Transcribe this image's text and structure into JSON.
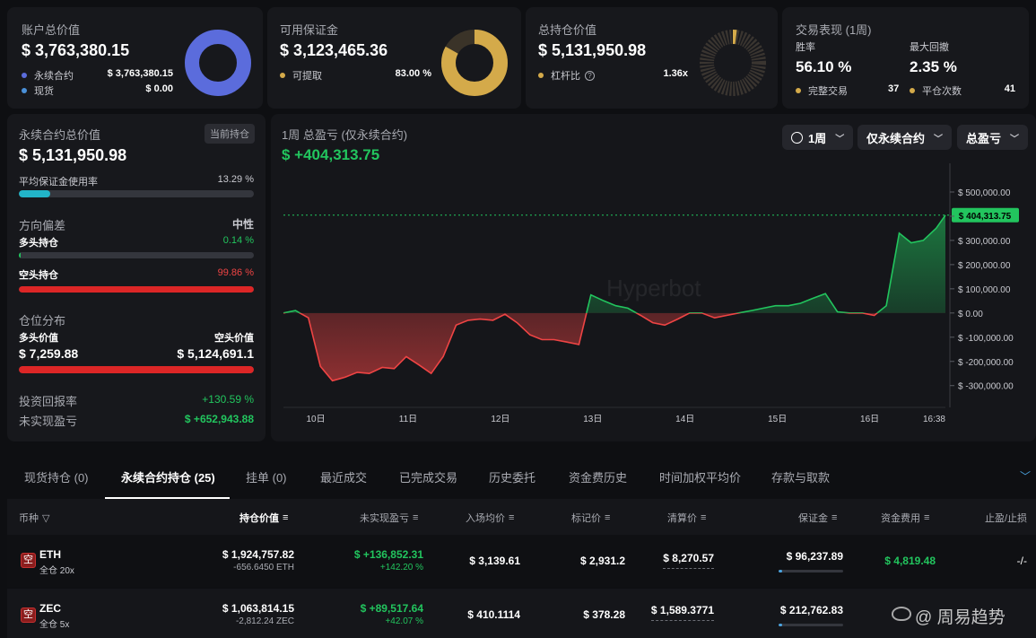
{
  "summary": {
    "account": {
      "title": "账户总价值",
      "value": "$ 3,763,380.15",
      "rows": [
        {
          "label": "永续合约",
          "value": "$ 3,763,380.15"
        },
        {
          "label": "现货",
          "value": "$ 0.00"
        }
      ],
      "color": "#5b6cdc",
      "fill_fraction": 1.0
    },
    "margin": {
      "title": "可用保证金",
      "value": "$ 3,123,465.36",
      "rows": [
        {
          "label": "可提取",
          "value": "83.00 %"
        }
      ],
      "color": "#d4aa4a",
      "fill_fraction": 0.83
    },
    "position": {
      "title": "总持仓价值",
      "value": "$ 5,131,950.98",
      "rows": [
        {
          "label": "杠杆比",
          "value": "1.36x"
        }
      ],
      "color": "#d4aa4a",
      "fill_fraction": 0.02
    },
    "performance": {
      "title": "交易表现 (1周)",
      "win_rate_label": "胜率",
      "win_rate": "56.10 %",
      "drawdown_label": "最大回撤",
      "drawdown": "2.35 %",
      "completed_label": "完整交易",
      "completed": "37",
      "closes_label": "平仓次数",
      "closes": "41"
    }
  },
  "perp": {
    "title": "永续合约总价值",
    "badge": "当前持仓",
    "value": "$ 5,131,950.98",
    "margin_usage_label": "平均保证金使用率",
    "margin_usage": "13.29 %",
    "margin_usage_fraction": 0.1329,
    "bias_label": "方向偏差",
    "bias_value": "中性",
    "long_label": "多头持仓",
    "long_pct": "0.14 %",
    "long_fraction": 0.0014,
    "short_label": "空头持仓",
    "short_pct": "99.86 %",
    "short_fraction": 0.9986,
    "distribution_label": "仓位分布",
    "long_value_label": "多头价值",
    "long_value": "$ 7,259.88",
    "short_value_label": "空头价值",
    "short_value": "$ 5,124,691.1",
    "roi_label": "投资回报率",
    "roi": "+130.59 %",
    "unrealized_label": "未实现盈亏",
    "unrealized": "$ +652,943.88"
  },
  "chart_panel": {
    "title": "1周 总盈亏 (仅永续合约)",
    "value": "$ +404,313.75",
    "period_button": "1周",
    "scope_button": "仅永续合约",
    "metric_button": "总盈亏",
    "watermark": "Hyperbot"
  },
  "chart_data": {
    "type": "area",
    "current_label": "$ 404,313.75",
    "current_value": 404313.75,
    "x_ticks": [
      "10日",
      "11日",
      "12日",
      "13日",
      "14日",
      "15日",
      "16日",
      "16:38"
    ],
    "y_ticks": [
      "$ 500,000.00",
      "$ 400,000.00",
      "$ 300,000.00",
      "$ 200,000.00",
      "$ 100,000.00",
      "$ 0.00",
      "$ -100,000.00",
      "$ -200,000.00",
      "$ -300,000.00"
    ],
    "ylim": [
      -390000,
      600000
    ],
    "x": [
      0,
      0.13,
      0.27,
      0.4,
      0.53,
      0.67,
      0.8,
      0.93,
      1.07,
      1.2,
      1.33,
      1.47,
      1.6,
      1.73,
      1.87,
      2.0,
      2.13,
      2.27,
      2.4,
      2.53,
      2.67,
      2.8,
      2.93,
      3.07,
      3.2,
      3.33,
      3.47,
      3.6,
      3.73,
      3.87,
      4.0,
      4.13,
      4.27,
      4.4,
      4.53,
      4.67,
      4.8,
      4.93,
      5.07,
      5.2,
      5.33,
      5.47,
      5.6,
      5.73,
      5.87,
      6.0,
      6.13,
      6.27,
      6.4,
      6.53,
      6.67,
      6.8,
      6.93,
      7.07,
      7.17
    ],
    "y": [
      0,
      10000,
      -20000,
      -220000,
      -280000,
      -265000,
      -245000,
      -250000,
      -225000,
      -230000,
      -180000,
      -215000,
      -250000,
      -180000,
      -50000,
      -30000,
      -25000,
      -30000,
      -5000,
      -40000,
      -90000,
      -110000,
      -110000,
      -120000,
      -130000,
      75000,
      50000,
      30000,
      20000,
      -10000,
      -40000,
      -50000,
      -25000,
      0,
      0,
      -20000,
      -10000,
      0,
      10000,
      20000,
      30000,
      30000,
      40000,
      60000,
      80000,
      5000,
      0,
      0,
      -10000,
      30000,
      330000,
      290000,
      300000,
      350000,
      404313.75
    ]
  },
  "tabs": [
    "现货持仓 (0)",
    "永续合约持仓 (25)",
    "挂单 (0)",
    "最近成交",
    "已完成交易",
    "历史委托",
    "资金费历史",
    "时间加权平均价",
    "存款与取款"
  ],
  "table": {
    "headers": [
      "币种",
      "持仓价值",
      "未实现盈亏",
      "入场均价",
      "标记价",
      "清算价",
      "保证金",
      "资金费用",
      "止盈/止损"
    ],
    "rows": [
      {
        "side": "空",
        "coin": "ETH",
        "mode": "全仓 20x",
        "value": "$ 1,924,757.82",
        "size": "-656.6450 ETH",
        "pnl": "$ +136,852.31",
        "pnl_pct": "+142.20 %",
        "entry": "$ 3,139.61",
        "mark": "$ 2,931.2",
        "liq": "$ 8,270.57",
        "margin": "$ 96,237.89",
        "margin_fraction": 0.05,
        "funding": "$ 4,819.48",
        "tpsl": "-/-"
      },
      {
        "side": "空",
        "coin": "ZEC",
        "mode": "全仓 5x",
        "value": "$ 1,063,814.15",
        "size": "-2,812.24 ZEC",
        "pnl": "$ +89,517.64",
        "pnl_pct": "+42.07 %",
        "entry": "$ 410.1114",
        "mark": "$ 378.28",
        "liq": "$ 1,589.3771",
        "margin": "$ 212,762.83",
        "margin_fraction": 0.06,
        "funding": "",
        "tpsl": ""
      }
    ]
  },
  "watermark": "@ 周易趋势"
}
